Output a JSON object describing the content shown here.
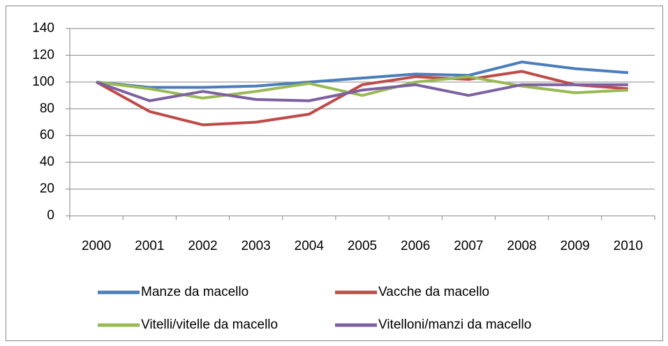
{
  "chart_data": {
    "type": "line",
    "categories": [
      "2000",
      "2001",
      "2002",
      "2003",
      "2004",
      "2005",
      "2006",
      "2007",
      "2008",
      "2009",
      "2010"
    ],
    "series": [
      {
        "name": "Manze da macello",
        "color": "#4a7ebb",
        "values": [
          100,
          96,
          96,
          97,
          100,
          103,
          106,
          105,
          115,
          110,
          107
        ]
      },
      {
        "name": "Vacche da macello",
        "color": "#be4b48",
        "values": [
          100,
          78,
          68,
          70,
          76,
          98,
          104,
          102,
          108,
          98,
          95
        ]
      },
      {
        "name": "Vitelli/vitelle da macello",
        "color": "#98b954",
        "values": [
          100,
          95,
          88,
          93,
          99,
          90,
          100,
          104,
          97,
          92,
          94
        ]
      },
      {
        "name": "Vitelloni/manzi da macello",
        "color": "#7d60a0",
        "values": [
          100,
          86,
          93,
          87,
          86,
          94,
          98,
          90,
          98,
          98,
          98
        ]
      }
    ],
    "ylim": [
      0,
      140
    ],
    "yticks": [
      0,
      20,
      40,
      60,
      80,
      100,
      120,
      140
    ],
    "grid": true
  }
}
